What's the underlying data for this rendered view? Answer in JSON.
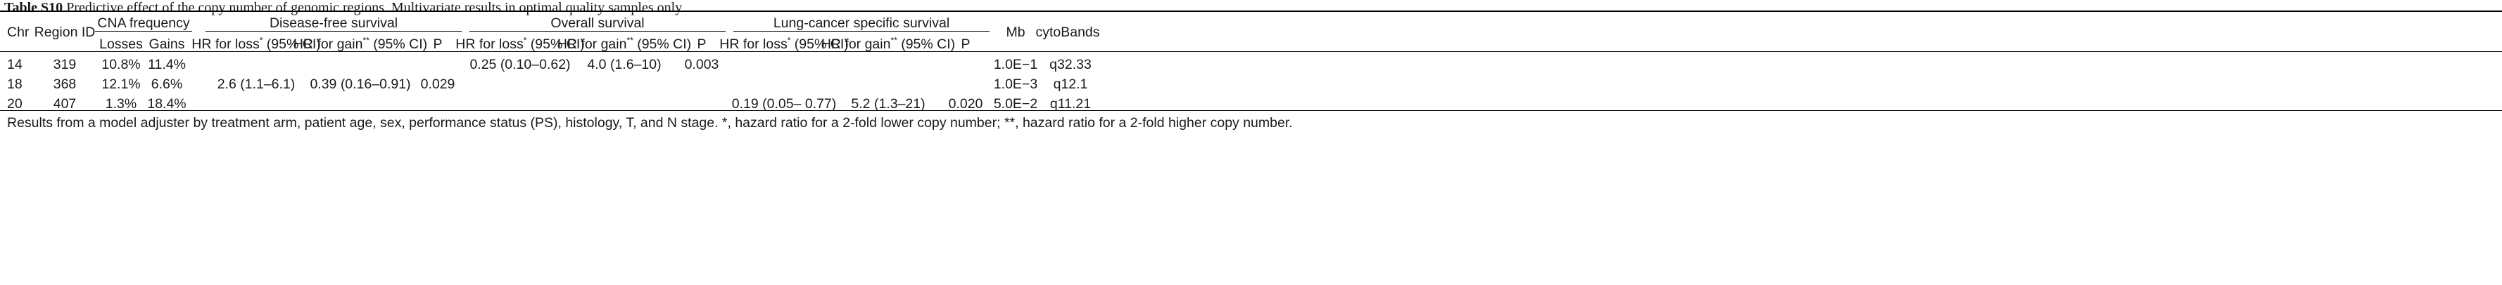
{
  "caption": {
    "label": "Table S10",
    "text": "Predictive effect of the copy number of genomic regions. Multivariate results in optimal quality samples only"
  },
  "headers": {
    "chr": "Chr",
    "region_id": "Region ID",
    "cna_frequency": "CNA frequency",
    "losses": "Losses",
    "gains": "Gains",
    "dfs": "Disease-free survival",
    "os": "Overall survival",
    "lcss": "Lung-cancer specific survival",
    "hr_loss": "HR for loss",
    "hr_loss_sup": "*",
    "hr_loss_ci": " (95% CI)",
    "hr_gain": "HR for gain",
    "hr_gain_sup": "**",
    "hr_gain_ci": " (95% CI)",
    "p": "P",
    "mb": "Mb",
    "cytobands": "cytoBands"
  },
  "rows": [
    {
      "chr": "14",
      "region_id": "319",
      "losses": "10.8%",
      "gains": "11.4%",
      "dfs_loss": "",
      "dfs_gain": "",
      "dfs_p": "",
      "os_loss": "0.25 (0.10–0.62)",
      "os_gain": "4.0 (1.6–10)",
      "os_p": "0.003",
      "lc_loss": "",
      "lc_gain": "",
      "lc_p": "",
      "mb": "1.0E−1",
      "cytobands": "q32.33"
    },
    {
      "chr": "18",
      "region_id": "368",
      "losses": "12.1%",
      "gains": "6.6%",
      "dfs_loss": "2.6 (1.1–6.1)",
      "dfs_gain": "0.39 (0.16–0.91)",
      "dfs_p": "0.029",
      "os_loss": "",
      "os_gain": "",
      "os_p": "",
      "lc_loss": "",
      "lc_gain": "",
      "lc_p": "",
      "mb": "1.0E−3",
      "cytobands": "q12.1"
    },
    {
      "chr": "20",
      "region_id": "407",
      "losses": "1.3%",
      "gains": "18.4%",
      "dfs_loss": "",
      "dfs_gain": "",
      "dfs_p": "",
      "os_loss": "",
      "os_gain": "",
      "os_p": "",
      "lc_loss": "0.19 (0.05– 0.77)",
      "lc_gain": "5.2 (1.3–21)",
      "lc_p": "0.020",
      "mb": "5.0E−2",
      "cytobands": "q11.21"
    }
  ],
  "footnote": "Results from a model adjuster by treatment arm, patient age, sex, performance status (PS), histology, T, and N stage. *, hazard ratio for a 2-fold lower copy number; **, hazard ratio for a 2-fold higher copy number."
}
